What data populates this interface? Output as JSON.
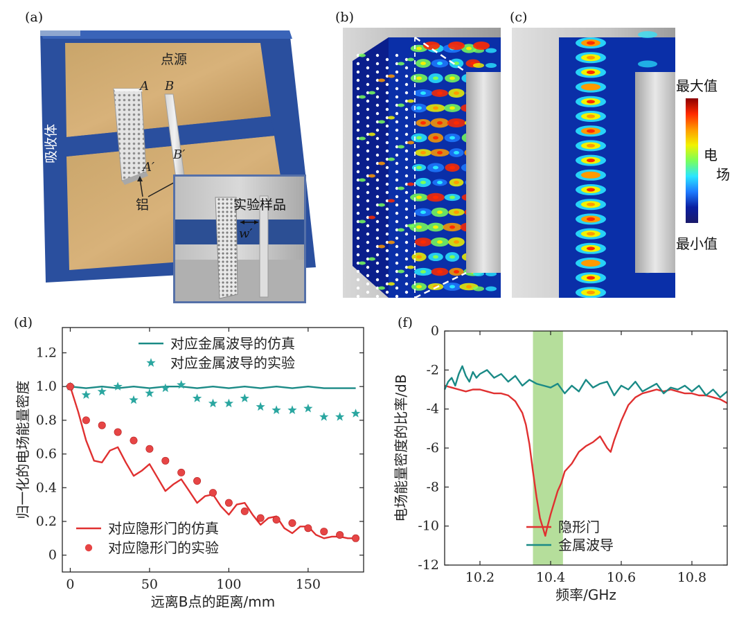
{
  "panels": {
    "a": {
      "label": "(a)",
      "absorber": "吸收体",
      "point_source": "点源",
      "pt_A": "A",
      "pt_B": "B",
      "pt_A2": "A′",
      "pt_B2": "B′",
      "aluminum": "铝",
      "sample": "实验样品",
      "width": "w′"
    },
    "b": {
      "label": "(b)"
    },
    "c": {
      "label": "(c)"
    },
    "colorbar": {
      "max": "最大值",
      "min": "最小值",
      "title_1": "电",
      "title_2": "场"
    },
    "d": {
      "label": "(d)"
    },
    "f": {
      "label": "(f)"
    }
  },
  "chart_data": [
    {
      "id": "d",
      "type": "line",
      "xlabel": "远离B点的距离/mm",
      "ylabel": "归一化的电场能量密度",
      "xlim": [
        -5,
        185
      ],
      "ylim": [
        -0.1,
        1.35
      ],
      "xticks": [
        0,
        50,
        100,
        150
      ],
      "yticks": [
        0,
        0.2,
        0.4,
        0.6,
        0.8,
        1.0,
        1.2
      ],
      "ytick_labels": [
        "0",
        "0.2",
        "0.4",
        "0.6",
        "0.8",
        "1.0",
        "1.2"
      ],
      "legend_top": "top",
      "legend_bottom": "bottom-left",
      "series": [
        {
          "name": "对应金属波导的仿真",
          "kind": "line",
          "color": "#1a8a86",
          "x": [
            0,
            10,
            20,
            30,
            40,
            50,
            60,
            70,
            80,
            90,
            100,
            110,
            120,
            130,
            140,
            150,
            160,
            170,
            180
          ],
          "y": [
            1.0,
            0.99,
            1.0,
            0.99,
            1.0,
            0.99,
            1.0,
            1.0,
            0.99,
            1.0,
            0.99,
            1.0,
            0.99,
            1.0,
            0.99,
            1.0,
            0.99,
            0.99,
            0.99
          ]
        },
        {
          "name": "对应金属波导的实验",
          "kind": "star",
          "color": "#2aa6a0",
          "x": [
            0,
            10,
            20,
            30,
            40,
            50,
            60,
            70,
            80,
            90,
            100,
            110,
            120,
            130,
            140,
            150,
            160,
            170,
            180
          ],
          "y": [
            1.0,
            0.95,
            0.97,
            1.0,
            0.92,
            0.96,
            0.99,
            1.01,
            0.93,
            0.9,
            0.9,
            0.93,
            0.88,
            0.86,
            0.86,
            0.87,
            0.82,
            0.82,
            0.84
          ]
        },
        {
          "name": "对应隐形门的仿真",
          "kind": "line",
          "color": "#e03030",
          "x": [
            0,
            5,
            10,
            15,
            20,
            25,
            30,
            35,
            40,
            45,
            50,
            55,
            60,
            65,
            70,
            75,
            80,
            85,
            90,
            95,
            100,
            105,
            110,
            115,
            120,
            125,
            130,
            135,
            140,
            145,
            150,
            155,
            160,
            165,
            170,
            175,
            180
          ],
          "y": [
            1.0,
            0.85,
            0.68,
            0.56,
            0.55,
            0.62,
            0.64,
            0.55,
            0.47,
            0.5,
            0.54,
            0.46,
            0.38,
            0.42,
            0.45,
            0.38,
            0.31,
            0.35,
            0.36,
            0.29,
            0.24,
            0.3,
            0.31,
            0.24,
            0.18,
            0.22,
            0.23,
            0.16,
            0.13,
            0.17,
            0.17,
            0.12,
            0.1,
            0.11,
            0.11,
            0.1,
            0.1
          ]
        },
        {
          "name": "对应隐形门的实验",
          "kind": "dot",
          "color": "#e64545",
          "x": [
            0,
            10,
            20,
            30,
            40,
            50,
            60,
            70,
            80,
            90,
            100,
            110,
            120,
            130,
            140,
            150,
            160,
            170,
            180
          ],
          "y": [
            1.0,
            0.8,
            0.77,
            0.73,
            0.68,
            0.63,
            0.56,
            0.49,
            0.44,
            0.37,
            0.31,
            0.26,
            0.22,
            0.21,
            0.19,
            0.16,
            0.14,
            0.12,
            0.1
          ]
        }
      ]
    },
    {
      "id": "f",
      "type": "line",
      "xlabel": "频率/GHz",
      "ylabel": "电场能量密度的比率/dB",
      "xlim": [
        10.1,
        10.9
      ],
      "ylim": [
        -12,
        0
      ],
      "xticks": [
        10.2,
        10.4,
        10.6,
        10.8
      ],
      "yticks": [
        0,
        -2,
        -4,
        -6,
        -8,
        -10,
        -12
      ],
      "highlight_band": [
        10.35,
        10.435
      ],
      "highlight_color": "#a8d88a",
      "legend": "bottom-center",
      "series": [
        {
          "name": "隐形门",
          "color": "#e03030",
          "x": [
            10.1,
            10.12,
            10.14,
            10.16,
            10.18,
            10.2,
            10.22,
            10.24,
            10.26,
            10.28,
            10.3,
            10.32,
            10.33,
            10.34,
            10.35,
            10.36,
            10.37,
            10.38,
            10.385,
            10.39,
            10.4,
            10.41,
            10.42,
            10.43,
            10.44,
            10.46,
            10.48,
            10.5,
            10.52,
            10.54,
            10.56,
            10.57,
            10.58,
            10.6,
            10.62,
            10.64,
            10.66,
            10.68,
            10.7,
            10.72,
            10.74,
            10.76,
            10.78,
            10.8,
            10.82,
            10.84,
            10.86,
            10.88,
            10.9
          ],
          "y": [
            -2.8,
            -2.9,
            -3.0,
            -3.1,
            -3.0,
            -3.0,
            -3.1,
            -3.2,
            -3.2,
            -3.3,
            -3.6,
            -4.2,
            -4.8,
            -5.8,
            -7.2,
            -8.5,
            -9.6,
            -10.2,
            -10.5,
            -10.1,
            -9.4,
            -8.8,
            -8.2,
            -7.8,
            -7.2,
            -6.8,
            -6.2,
            -5.9,
            -5.7,
            -5.4,
            -6.0,
            -6.2,
            -5.6,
            -4.6,
            -3.8,
            -3.4,
            -3.2,
            -3.1,
            -3.0,
            -3.1,
            -3.0,
            -3.1,
            -3.2,
            -3.2,
            -3.3,
            -3.3,
            -3.4,
            -3.5,
            -3.7
          ]
        },
        {
          "name": "金属波导",
          "color": "#1a8a86",
          "x": [
            10.1,
            10.11,
            10.12,
            10.13,
            10.14,
            10.15,
            10.16,
            10.17,
            10.18,
            10.19,
            10.2,
            10.22,
            10.24,
            10.26,
            10.28,
            10.3,
            10.32,
            10.34,
            10.36,
            10.38,
            10.4,
            10.42,
            10.44,
            10.46,
            10.48,
            10.5,
            10.52,
            10.54,
            10.56,
            10.58,
            10.6,
            10.62,
            10.64,
            10.66,
            10.68,
            10.7,
            10.72,
            10.74,
            10.76,
            10.78,
            10.8,
            10.82,
            10.84,
            10.86,
            10.88,
            10.9
          ],
          "y": [
            -3.0,
            -2.6,
            -2.4,
            -2.8,
            -2.2,
            -1.8,
            -2.3,
            -2.6,
            -2.1,
            -2.4,
            -2.2,
            -2.0,
            -2.4,
            -2.2,
            -2.6,
            -2.3,
            -2.8,
            -2.5,
            -2.7,
            -2.8,
            -2.9,
            -2.7,
            -3.2,
            -2.8,
            -3.1,
            -2.5,
            -2.9,
            -2.7,
            -2.6,
            -3.3,
            -2.8,
            -3.0,
            -2.6,
            -3.1,
            -2.9,
            -2.7,
            -3.2,
            -2.9,
            -3.0,
            -2.8,
            -3.1,
            -2.8,
            -3.3,
            -3.0,
            -3.4,
            -3.1
          ]
        }
      ]
    }
  ]
}
